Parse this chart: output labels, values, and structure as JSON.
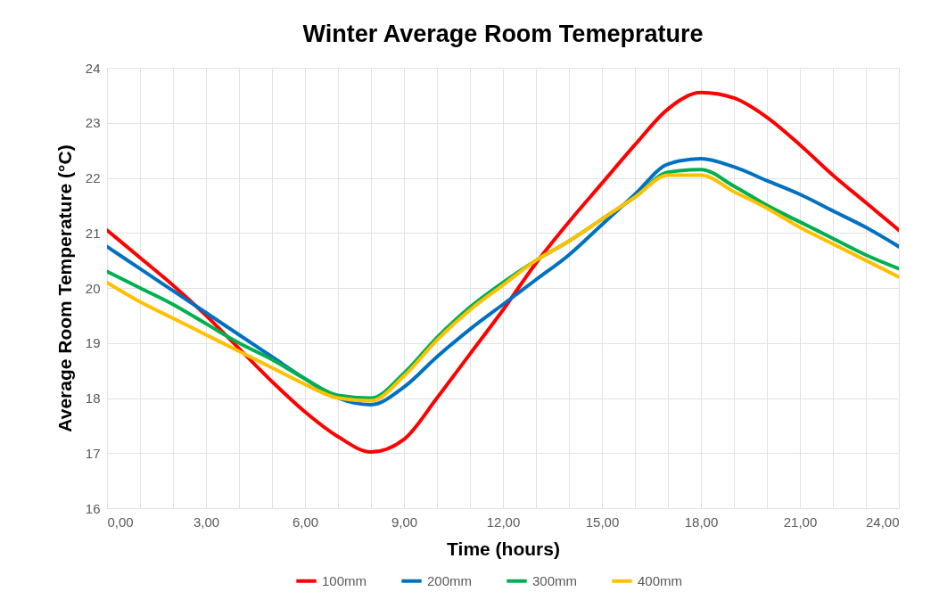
{
  "chart_data": {
    "type": "line",
    "title": "Winter Average Room Temeprature",
    "xlabel": "Time (hours)",
    "ylabel": "Average Room Temperature (°C)",
    "x": [
      0,
      1,
      2,
      3,
      4,
      5,
      6,
      7,
      8,
      9,
      10,
      11,
      12,
      13,
      14,
      15,
      16,
      17,
      18,
      19,
      20,
      21,
      22,
      23,
      24
    ],
    "series": [
      {
        "name": "100mm",
        "color": "#ff0000",
        "values": [
          21.05,
          20.55,
          20.05,
          19.5,
          18.9,
          18.3,
          17.75,
          17.3,
          17.02,
          17.25,
          18.0,
          18.8,
          19.6,
          20.45,
          21.2,
          21.9,
          22.6,
          23.25,
          23.55,
          23.45,
          23.1,
          22.6,
          22.05,
          21.55,
          21.05
        ]
      },
      {
        "name": "200mm",
        "color": "#0070c0",
        "values": [
          20.75,
          20.35,
          19.95,
          19.55,
          19.15,
          18.75,
          18.35,
          18.0,
          17.88,
          18.2,
          18.75,
          19.25,
          19.7,
          20.15,
          20.6,
          21.15,
          21.7,
          22.25,
          22.35,
          22.2,
          21.95,
          21.7,
          21.4,
          21.1,
          20.75
        ]
      },
      {
        "name": "300mm",
        "color": "#00b050",
        "values": [
          20.3,
          20.0,
          19.7,
          19.35,
          19.0,
          18.7,
          18.35,
          18.05,
          18.0,
          18.45,
          19.1,
          19.65,
          20.1,
          20.5,
          20.85,
          21.25,
          21.65,
          22.1,
          22.15,
          21.85,
          21.5,
          21.2,
          20.9,
          20.6,
          20.35
        ]
      },
      {
        "name": "400mm",
        "color": "#ffc000",
        "values": [
          20.1,
          19.75,
          19.45,
          19.15,
          18.85,
          18.55,
          18.25,
          18.0,
          17.95,
          18.4,
          19.05,
          19.6,
          20.05,
          20.5,
          20.85,
          21.25,
          21.65,
          22.05,
          22.05,
          21.75,
          21.45,
          21.1,
          20.8,
          20.5,
          20.2
        ]
      }
    ],
    "xlim": [
      0,
      24
    ],
    "xticks": [
      {
        "value": 0,
        "label": "0,00"
      },
      {
        "value": 1,
        "label": null
      },
      {
        "value": 2,
        "label": null
      },
      {
        "value": 3,
        "label": "3,00"
      },
      {
        "value": 4,
        "label": null
      },
      {
        "value": 5,
        "label": null
      },
      {
        "value": 6,
        "label": "6,00"
      },
      {
        "value": 7,
        "label": null
      },
      {
        "value": 8,
        "label": null
      },
      {
        "value": 9,
        "label": "9,00"
      },
      {
        "value": 10,
        "label": null
      },
      {
        "value": 11,
        "label": null
      },
      {
        "value": 12,
        "label": "12,00"
      },
      {
        "value": 13,
        "label": null
      },
      {
        "value": 14,
        "label": null
      },
      {
        "value": 15,
        "label": "15,00"
      },
      {
        "value": 16,
        "label": null
      },
      {
        "value": 17,
        "label": null
      },
      {
        "value": 18,
        "label": "18,00"
      },
      {
        "value": 19,
        "label": null
      },
      {
        "value": 20,
        "label": null
      },
      {
        "value": 21,
        "label": "21,00"
      },
      {
        "value": 22,
        "label": null
      },
      {
        "value": 23,
        "label": null
      },
      {
        "value": 24,
        "label": "24,00"
      }
    ],
    "ylim": [
      16,
      24
    ],
    "yticks": [
      16,
      17,
      18,
      19,
      20,
      21,
      22,
      23,
      24
    ],
    "grid": true,
    "legend": "bottom",
    "line_style": "solid"
  }
}
